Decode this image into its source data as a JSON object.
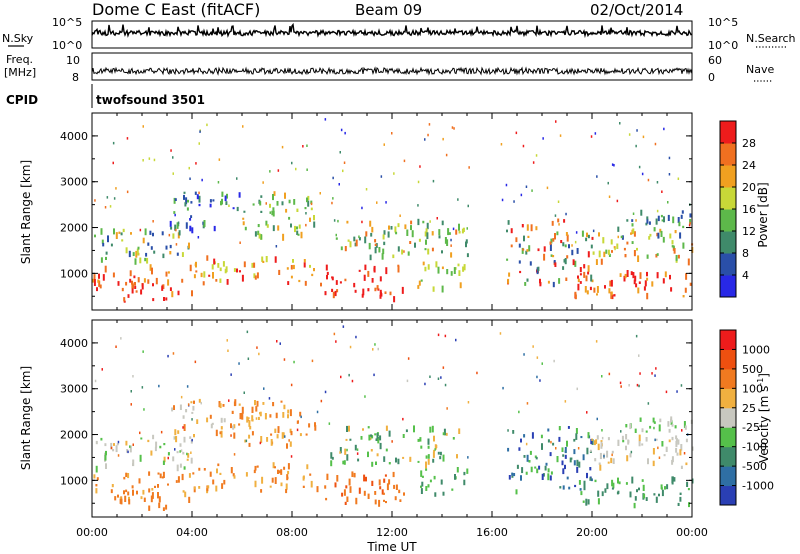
{
  "header": {
    "title": "Dome C East (fitACF)",
    "beam": "Beam 09",
    "date": "02/Oct/2014",
    "program": "twofsound 3501"
  },
  "aux_panels": {
    "nsky_label": "N.Sky",
    "nsky_ticks": [
      "10^5",
      "10^0"
    ],
    "nsearch_label": "N.Search",
    "nsearch_ticks": [
      "10^5",
      "10^0"
    ],
    "freq_label": "Freq.",
    "freq_unit": "[MHz]",
    "freq_ticks": [
      "10",
      "8"
    ],
    "nave_label": "Nave",
    "nave_ticks": [
      "60",
      "0"
    ],
    "cpid_label": "CPID"
  },
  "chart_data": [
    {
      "type": "heatmap",
      "name": "power-panel",
      "ylabel": "Slant Range [km]",
      "yticks": [
        "1000",
        "2000",
        "3000",
        "4000"
      ],
      "ylim": [
        200,
        4500
      ],
      "xlim": [
        "00:00",
        "24:00"
      ],
      "colorbar": {
        "label": "Power [dB]",
        "ticks": [
          "4",
          "8",
          "12",
          "16",
          "20",
          "24",
          "28"
        ],
        "colors": [
          "#2828e6",
          "#2a4fa8",
          "#3f8a6a",
          "#5db84a",
          "#c8d838",
          "#f0a020",
          "#f07020",
          "#ee1c1c"
        ]
      }
    },
    {
      "type": "heatmap",
      "name": "velocity-panel",
      "ylabel": "Slant Range [km]",
      "yticks": [
        "1000",
        "2000",
        "3000",
        "4000"
      ],
      "ylim": [
        200,
        4500
      ],
      "xlim": [
        "00:00",
        "24:00"
      ],
      "colorbar": {
        "label": "Velocity [m s^-1]",
        "ticks": [
          "1000",
          "500",
          "100",
          "25",
          "-25",
          "-100",
          "-500",
          "-1000"
        ],
        "colors": [
          "#2a3fb4",
          "#2f6fa4",
          "#3f8a6a",
          "#55c04a",
          "#c8c8c0",
          "#f0b040",
          "#f07a20",
          "#ee5010",
          "#ee1c1c"
        ]
      }
    }
  ],
  "x_axis": {
    "label": "Time UT",
    "ticks": [
      "00:00",
      "04:00",
      "08:00",
      "12:00",
      "16:00",
      "20:00",
      "00:00"
    ]
  }
}
